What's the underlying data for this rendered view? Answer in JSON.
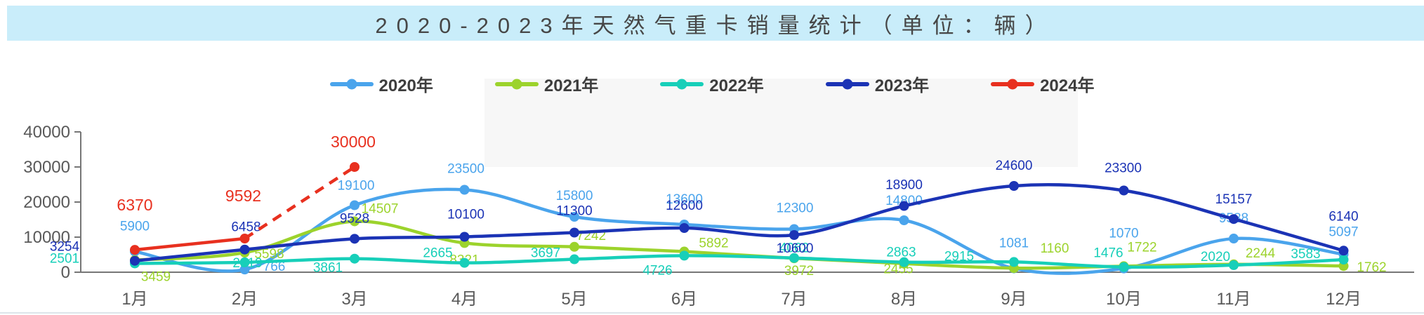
{
  "title": {
    "text": "2020-2023年天然气重卡销量统计（单位：辆）"
  },
  "chart_data": {
    "type": "line",
    "title": "2020-2023年天然气重卡销量统计",
    "unit": "辆",
    "legend_position": "top",
    "grid": false,
    "categories": [
      "1月",
      "2月",
      "3月",
      "4月",
      "5月",
      "6月",
      "7月",
      "8月",
      "9月",
      "10月",
      "11月",
      "12月"
    ],
    "y_axis": {
      "min": 0,
      "max": 40000,
      "ticks": [
        0,
        10000,
        20000,
        30000,
        40000
      ]
    },
    "series": [
      {
        "name": "2020年",
        "color": "#4AA4EC",
        "style": "solid",
        "values": [
          5900,
          766,
          19100,
          23500,
          15800,
          13600,
          12300,
          14800,
          1081,
          1070,
          9588,
          5097
        ]
      },
      {
        "name": "2021年",
        "color": "#9CD32C",
        "style": "solid",
        "values": [
          3459,
          5598,
          14507,
          8321,
          7242,
          5892,
          3972,
          2455,
          1160,
          1722,
          2244,
          1762
        ]
      },
      {
        "name": "2022年",
        "color": "#17CFB9",
        "style": "solid",
        "values": [
          2501,
          2819,
          3861,
          2665,
          3697,
          4726,
          4062,
          2863,
          2915,
          1476,
          2020,
          3583
        ]
      },
      {
        "name": "2023年",
        "color": "#1B33B5",
        "style": "solid",
        "values": [
          3254,
          6458,
          9528,
          10100,
          11300,
          12600,
          10600,
          18900,
          24600,
          23300,
          15157,
          6140
        ]
      },
      {
        "name": "2024年",
        "color": "#E8301F",
        "style": "dashed-forecast",
        "dashed_from": 1,
        "values": [
          6370,
          9592,
          30000
        ]
      }
    ]
  }
}
